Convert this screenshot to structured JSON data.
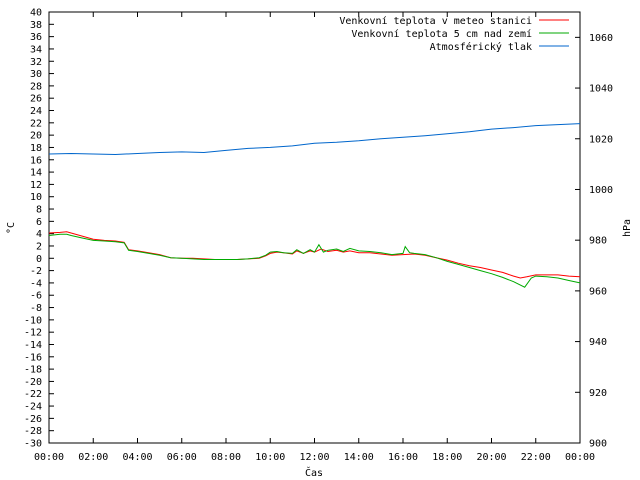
{
  "chart_data": {
    "type": "line",
    "xlabel": "Čas",
    "ylabel_left": "°C",
    "ylabel_right": "hPa",
    "x_ticks": [
      "00:00",
      "02:00",
      "04:00",
      "06:00",
      "08:00",
      "10:00",
      "12:00",
      "14:00",
      "16:00",
      "18:00",
      "20:00",
      "22:00",
      "00:00"
    ],
    "x_range_hours": [
      0,
      24
    ],
    "y_left_range": [
      -30,
      40
    ],
    "y_left_step": 2,
    "y_right_range": [
      900,
      1070
    ],
    "y_right_ticks": [
      900,
      920,
      940,
      960,
      980,
      1000,
      1020,
      1040,
      1060
    ],
    "legend_position": "top-right",
    "grid": false,
    "series": [
      {
        "name": "Venkovní teplota v meteo stanici",
        "color": "#ff0000",
        "axis": "left",
        "points": [
          [
            0,
            4.1
          ],
          [
            0.5,
            4.2
          ],
          [
            0.8,
            4.3
          ],
          [
            1.0,
            4.1
          ],
          [
            1.5,
            3.6
          ],
          [
            2.0,
            3.1
          ],
          [
            2.5,
            2.9
          ],
          [
            3.0,
            2.8
          ],
          [
            3.4,
            2.6
          ],
          [
            3.6,
            1.4
          ],
          [
            4.0,
            1.2
          ],
          [
            4.5,
            0.9
          ],
          [
            5.0,
            0.6
          ],
          [
            5.5,
            0.1
          ],
          [
            6.0,
            0.0
          ],
          [
            6.5,
            0.0
          ],
          [
            7.0,
            -0.1
          ],
          [
            7.5,
            -0.2
          ],
          [
            8.0,
            -0.2
          ],
          [
            8.5,
            -0.2
          ],
          [
            9.0,
            -0.1
          ],
          [
            9.5,
            0.0
          ],
          [
            9.8,
            0.4
          ],
          [
            10.0,
            0.8
          ],
          [
            10.3,
            1.0
          ],
          [
            10.6,
            0.9
          ],
          [
            11.0,
            0.7
          ],
          [
            11.2,
            1.2
          ],
          [
            11.5,
            0.8
          ],
          [
            11.8,
            1.2
          ],
          [
            12.0,
            1.0
          ],
          [
            12.3,
            1.5
          ],
          [
            12.6,
            1.1
          ],
          [
            13.0,
            1.3
          ],
          [
            13.3,
            1.0
          ],
          [
            13.6,
            1.2
          ],
          [
            14.0,
            0.9
          ],
          [
            14.5,
            0.9
          ],
          [
            15.0,
            0.7
          ],
          [
            15.5,
            0.5
          ],
          [
            16.0,
            0.6
          ],
          [
            16.5,
            0.7
          ],
          [
            17.0,
            0.5
          ],
          [
            17.5,
            0.1
          ],
          [
            18.0,
            -0.3
          ],
          [
            18.5,
            -0.8
          ],
          [
            19.0,
            -1.2
          ],
          [
            19.5,
            -1.5
          ],
          [
            20.0,
            -1.9
          ],
          [
            20.5,
            -2.3
          ],
          [
            21.0,
            -2.9
          ],
          [
            21.3,
            -3.2
          ],
          [
            21.6,
            -3.0
          ],
          [
            22.0,
            -2.7
          ],
          [
            22.5,
            -2.7
          ],
          [
            23.0,
            -2.7
          ],
          [
            23.5,
            -2.9
          ],
          [
            24.0,
            -3.0
          ]
        ]
      },
      {
        "name": "Venkovní teplota 5 cm nad zemí",
        "color": "#00aa00",
        "axis": "left",
        "points": [
          [
            0,
            3.7
          ],
          [
            0.5,
            3.9
          ],
          [
            0.8,
            3.9
          ],
          [
            1.0,
            3.7
          ],
          [
            1.5,
            3.3
          ],
          [
            2.0,
            2.9
          ],
          [
            2.5,
            2.8
          ],
          [
            3.0,
            2.7
          ],
          [
            3.4,
            2.5
          ],
          [
            3.6,
            1.3
          ],
          [
            4.0,
            1.1
          ],
          [
            4.5,
            0.8
          ],
          [
            5.0,
            0.5
          ],
          [
            5.5,
            0.1
          ],
          [
            6.0,
            0.0
          ],
          [
            6.5,
            -0.1
          ],
          [
            7.0,
            -0.2
          ],
          [
            7.5,
            -0.2
          ],
          [
            8.0,
            -0.2
          ],
          [
            8.5,
            -0.2
          ],
          [
            9.0,
            -0.1
          ],
          [
            9.5,
            0.1
          ],
          [
            9.8,
            0.5
          ],
          [
            10.0,
            1.0
          ],
          [
            10.3,
            1.1
          ],
          [
            10.6,
            0.9
          ],
          [
            11.0,
            0.8
          ],
          [
            11.2,
            1.4
          ],
          [
            11.5,
            0.8
          ],
          [
            11.8,
            1.4
          ],
          [
            12.0,
            1.0
          ],
          [
            12.2,
            2.2
          ],
          [
            12.4,
            1.0
          ],
          [
            12.6,
            1.3
          ],
          [
            13.0,
            1.5
          ],
          [
            13.3,
            1.1
          ],
          [
            13.6,
            1.6
          ],
          [
            14.0,
            1.2
          ],
          [
            14.5,
            1.1
          ],
          [
            15.0,
            0.9
          ],
          [
            15.5,
            0.6
          ],
          [
            16.0,
            0.8
          ],
          [
            16.1,
            1.9
          ],
          [
            16.3,
            0.9
          ],
          [
            16.5,
            0.8
          ],
          [
            17.0,
            0.6
          ],
          [
            17.5,
            0.1
          ],
          [
            18.0,
            -0.5
          ],
          [
            18.5,
            -1.0
          ],
          [
            19.0,
            -1.5
          ],
          [
            19.5,
            -2.0
          ],
          [
            20.0,
            -2.5
          ],
          [
            20.5,
            -3.1
          ],
          [
            21.0,
            -3.8
          ],
          [
            21.5,
            -4.7
          ],
          [
            21.8,
            -3.2
          ],
          [
            22.0,
            -2.9
          ],
          [
            22.5,
            -3.0
          ],
          [
            23.0,
            -3.2
          ],
          [
            23.5,
            -3.6
          ],
          [
            24.0,
            -4.0
          ]
        ]
      },
      {
        "name": "Atmosférický tlak",
        "color": "#0066cc",
        "axis": "right",
        "points": [
          [
            0,
            1014.0
          ],
          [
            1,
            1014.2
          ],
          [
            2,
            1014.0
          ],
          [
            3,
            1013.8
          ],
          [
            4,
            1014.2
          ],
          [
            5,
            1014.6
          ],
          [
            6,
            1014.8
          ],
          [
            7,
            1014.6
          ],
          [
            8,
            1015.4
          ],
          [
            9,
            1016.2
          ],
          [
            10,
            1016.6
          ],
          [
            11,
            1017.2
          ],
          [
            12,
            1018.2
          ],
          [
            13,
            1018.6
          ],
          [
            14,
            1019.2
          ],
          [
            15,
            1020.0
          ],
          [
            16,
            1020.6
          ],
          [
            17,
            1021.2
          ],
          [
            18,
            1022.0
          ],
          [
            19,
            1022.8
          ],
          [
            20,
            1023.8
          ],
          [
            21,
            1024.4
          ],
          [
            22,
            1025.2
          ],
          [
            23,
            1025.6
          ],
          [
            24,
            1026.0
          ]
        ]
      }
    ]
  }
}
